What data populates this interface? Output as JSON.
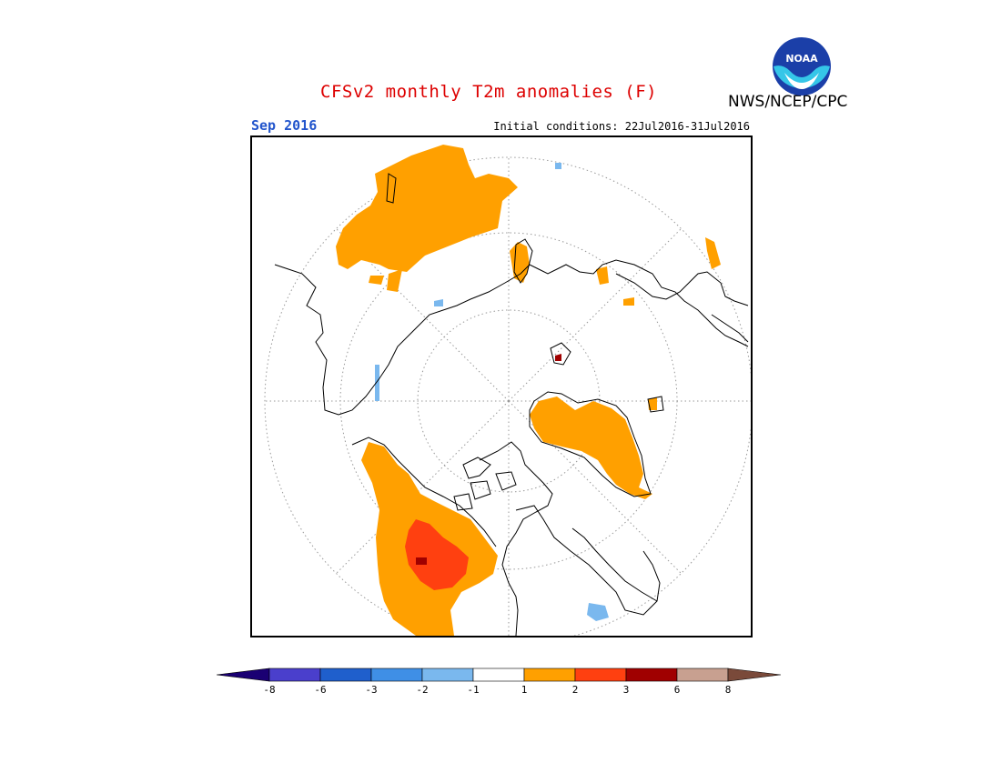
{
  "title": "CFSv2 monthly T2m anomalies (F)",
  "agency": "NWS/NCEP/CPC",
  "logo_text": "NOAA",
  "month": "Sep 2016",
  "initial_conditions": "Initial conditions: 22Jul2016-31Jul2016",
  "colors": {
    "title": "#dd0000",
    "month": "#2255cc"
  },
  "colorbar": {
    "bins": [
      {
        "color": "#1a0073"
      },
      {
        "color": "#4a3fcc"
      },
      {
        "color": "#1f5fcc"
      },
      {
        "color": "#3f8fe6"
      },
      {
        "color": "#7ab8ee"
      },
      {
        "color": "#ffffff"
      },
      {
        "color": "#ffa000"
      },
      {
        "color": "#ff4010"
      },
      {
        "color": "#a00000"
      },
      {
        "color": "#c8a090"
      },
      {
        "color": "#7a4a3a"
      }
    ],
    "tick_labels": [
      "-8",
      "-6",
      "-3",
      "-2",
      "-1",
      "1",
      "2",
      "3",
      "6",
      "8"
    ]
  }
}
